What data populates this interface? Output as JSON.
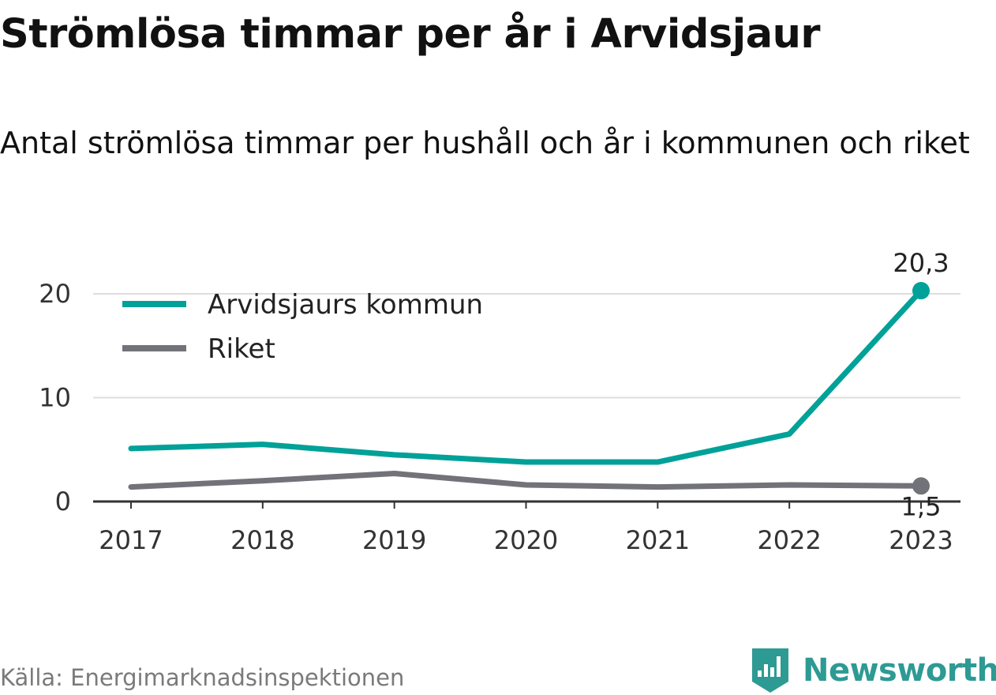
{
  "title": "Strömlösa timmar per år i Arvidsjaur",
  "subtitle": "Antal strömlösa timmar per hushåll och år i kommunen och riket",
  "source": "Källa: Energimarknadsinspektionen",
  "brand": {
    "name": "Newsworthy",
    "icon": "bar-chart-pin-icon",
    "color": "#2e9a94"
  },
  "chart_data": {
    "type": "line",
    "x": [
      "2017",
      "2018",
      "2019",
      "2020",
      "2021",
      "2022",
      "2023"
    ],
    "ylim": [
      0,
      20.5
    ],
    "yticks": [
      0,
      10,
      20
    ],
    "grid": true,
    "legend_position": "top-left",
    "series": [
      {
        "name": "Arvidsjaurs kommun",
        "color": "#00a198",
        "values": [
          5.1,
          5.5,
          4.5,
          3.8,
          3.8,
          6.5,
          20.3
        ],
        "end_label": "20,3"
      },
      {
        "name": "Riket",
        "color": "#727279",
        "values": [
          1.4,
          2.0,
          2.7,
          1.6,
          1.4,
          1.6,
          1.5
        ],
        "end_label": "1,5"
      }
    ]
  }
}
